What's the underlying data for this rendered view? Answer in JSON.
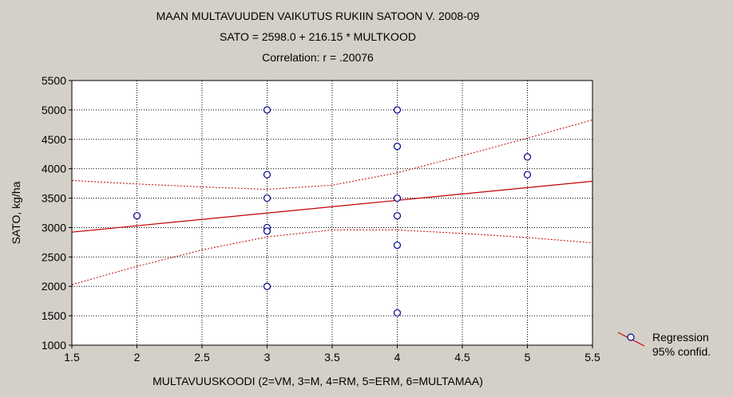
{
  "chart_data": {
    "type": "scatter",
    "title": "MAAN MULTAVUUDEN VAIKUTUS RUKIIN SATOON V. 2008-09",
    "subtitle": "SATO = 2598.0 + 216.15 * MULTKOOD",
    "subtitle2": "Correlation: r = .20076",
    "xlabel": "MULTAVUUSKOODI (2=VM, 3=M, 4=RM, 5=ERM, 6=MULTAMAA)",
    "ylabel": "SATO, kg/ha",
    "xlim": [
      1.5,
      5.5
    ],
    "ylim": [
      1000,
      5500
    ],
    "x_ticks": [
      1.5,
      2,
      2.5,
      3,
      3.5,
      4,
      4.5,
      5,
      5.5
    ],
    "x_tick_labels": [
      "1.5",
      "2",
      "2.5",
      "3",
      "3.5",
      "4",
      "4.5",
      "5",
      "5.5"
    ],
    "y_ticks": [
      1000,
      1500,
      2000,
      2500,
      3000,
      3500,
      4000,
      4500,
      5000,
      5500
    ],
    "y_tick_labels": [
      "1000",
      "1500",
      "2000",
      "2500",
      "3000",
      "3500",
      "4000",
      "4500",
      "5000",
      "5500"
    ],
    "grid": true,
    "legend_position": "bottom-right",
    "points": [
      {
        "x": 2,
        "y": 3200
      },
      {
        "x": 3,
        "y": 5000
      },
      {
        "x": 3,
        "y": 3900
      },
      {
        "x": 3,
        "y": 3500
      },
      {
        "x": 3,
        "y": 3000
      },
      {
        "x": 3,
        "y": 2940
      },
      {
        "x": 3,
        "y": 2000
      },
      {
        "x": 4,
        "y": 5000
      },
      {
        "x": 4,
        "y": 4380
      },
      {
        "x": 4,
        "y": 3500
      },
      {
        "x": 4,
        "y": 3200
      },
      {
        "x": 4,
        "y": 2700
      },
      {
        "x": 4,
        "y": 1550
      },
      {
        "x": 5,
        "y": 4200
      },
      {
        "x": 5,
        "y": 3900
      }
    ],
    "regression": {
      "intercept": 2598.0,
      "slope": 216.15
    },
    "confidence_upper": [
      {
        "x": 1.5,
        "y": 3800
      },
      {
        "x": 2.0,
        "y": 3740
      },
      {
        "x": 2.5,
        "y": 3690
      },
      {
        "x": 3.0,
        "y": 3650
      },
      {
        "x": 3.5,
        "y": 3720
      },
      {
        "x": 4.0,
        "y": 3930
      },
      {
        "x": 4.5,
        "y": 4220
      },
      {
        "x": 5.0,
        "y": 4520
      },
      {
        "x": 5.5,
        "y": 4830
      }
    ],
    "confidence_lower": [
      {
        "x": 1.5,
        "y": 2030
      },
      {
        "x": 2.0,
        "y": 2340
      },
      {
        "x": 2.5,
        "y": 2620
      },
      {
        "x": 3.0,
        "y": 2840
      },
      {
        "x": 3.5,
        "y": 2960
      },
      {
        "x": 4.0,
        "y": 2960
      },
      {
        "x": 4.5,
        "y": 2900
      },
      {
        "x": 5.0,
        "y": 2830
      },
      {
        "x": 5.5,
        "y": 2740
      }
    ],
    "legend": [
      {
        "label": "Regression"
      },
      {
        "label": "95% confid."
      }
    ],
    "colors": {
      "point": "#00008b",
      "line": "#c00000",
      "plot_bg": "#ffffff",
      "page_bg": "#d4d0c8",
      "grid": "#000000"
    }
  }
}
